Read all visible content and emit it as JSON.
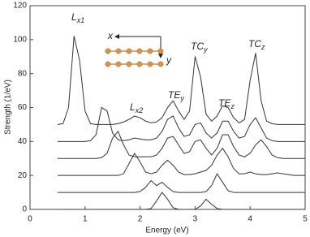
{
  "chart_data": {
    "type": "line",
    "xlabel": "Energy (eV)",
    "ylabel": "Strength (1/eV)",
    "xlim": [
      0,
      5
    ],
    "ylim": [
      0,
      120
    ],
    "xticks": [
      0,
      1,
      2,
      3,
      4,
      5
    ],
    "yticks": [
      0,
      20,
      40,
      60,
      80,
      100,
      120
    ],
    "x": [
      0.5,
      0.6,
      0.7,
      0.8,
      0.9,
      1.0,
      1.1,
      1.2,
      1.3,
      1.4,
      1.5,
      1.6,
      1.7,
      1.8,
      1.9,
      2.0,
      2.1,
      2.2,
      2.3,
      2.4,
      2.5,
      2.6,
      2.7,
      2.8,
      2.9,
      3.0,
      3.1,
      3.2,
      3.3,
      3.4,
      3.5,
      3.6,
      3.7,
      3.8,
      3.9,
      4.0,
      4.1,
      4.2,
      4.3,
      4.4,
      4.5,
      4.6,
      4.7,
      4.8,
      4.9,
      5.0
    ],
    "series": [
      {
        "color": "#333333",
        "values": [
          50,
          50.5,
          60,
          102,
          88,
          58,
          50.5,
          50,
          50,
          50,
          50,
          50.5,
          51.5,
          53,
          55,
          54,
          52,
          51,
          51.5,
          54,
          60,
          64,
          58,
          53,
          58,
          90,
          78,
          56,
          52,
          55,
          61,
          60,
          54,
          51,
          53,
          76,
          92,
          64,
          52,
          50.5,
          50,
          50,
          50,
          50,
          50,
          50
        ]
      },
      {
        "color": "#333333",
        "values": [
          40,
          40,
          40,
          40,
          40,
          40,
          40.5,
          44,
          60,
          58,
          45,
          41,
          40.5,
          41,
          42,
          41.5,
          41,
          41,
          42,
          46,
          53,
          55,
          48,
          43,
          44,
          50,
          51,
          45,
          42,
          45,
          52,
          52,
          46,
          42,
          43,
          50,
          54,
          48,
          42,
          40.5,
          40,
          40,
          40,
          40,
          40,
          40
        ]
      },
      {
        "color": "#333333",
        "values": [
          30,
          30,
          30,
          30,
          30,
          30,
          30,
          30,
          30.5,
          33,
          42,
          46,
          38,
          32,
          31,
          31,
          31,
          31,
          32,
          36,
          42,
          43,
          38,
          33,
          34,
          40,
          41,
          36,
          32,
          36,
          44,
          44,
          37,
          32,
          31,
          33,
          38,
          41,
          37,
          32,
          30.5,
          30,
          30,
          30,
          30,
          30
        ]
      },
      {
        "color": "#333333",
        "values": [
          20,
          20,
          20,
          20,
          20,
          20,
          20,
          20,
          20,
          20,
          20,
          20,
          21,
          27,
          33,
          28,
          22,
          21,
          22,
          26,
          29,
          26,
          22,
          20.5,
          20.5,
          21,
          22,
          23,
          26,
          32,
          36,
          31,
          24,
          21,
          21,
          22,
          21,
          20.5,
          20.5,
          21,
          21.5,
          21,
          20.5,
          20,
          20,
          20
        ]
      },
      {
        "color": "#333333",
        "values": [
          10,
          10,
          10,
          10,
          10,
          10,
          10,
          10,
          10,
          10,
          10,
          10,
          10,
          10,
          10,
          10.5,
          13,
          17,
          14,
          16,
          13,
          10.5,
          10,
          10,
          10,
          10,
          10,
          10.5,
          14,
          21,
          16,
          11,
          10,
          10,
          10,
          10,
          10,
          10,
          10,
          10,
          10,
          10,
          10,
          10,
          10,
          10
        ]
      },
      {
        "color": "#333333",
        "values": [
          0,
          0,
          0,
          0,
          0,
          0,
          0,
          0,
          0,
          0,
          0,
          0,
          0,
          0,
          0,
          0,
          0,
          0.5,
          5,
          10,
          6,
          1,
          0,
          0,
          0,
          0,
          2,
          6,
          3,
          0.5,
          0,
          0,
          0,
          0,
          0,
          0,
          0,
          0,
          0,
          0,
          0,
          0,
          0,
          0,
          0,
          0
        ]
      }
    ],
    "annotations": [
      {
        "text": "L",
        "sub": "x1"
      },
      {
        "text": "L",
        "sub": "x2"
      },
      {
        "text": "TE",
        "sub": "y"
      },
      {
        "text": "TC",
        "sub": "y"
      },
      {
        "text": "TE",
        "sub": "z"
      },
      {
        "text": "TC",
        "sub": "z"
      }
    ],
    "inset": {
      "x_label": "x",
      "y_label": "y"
    }
  }
}
